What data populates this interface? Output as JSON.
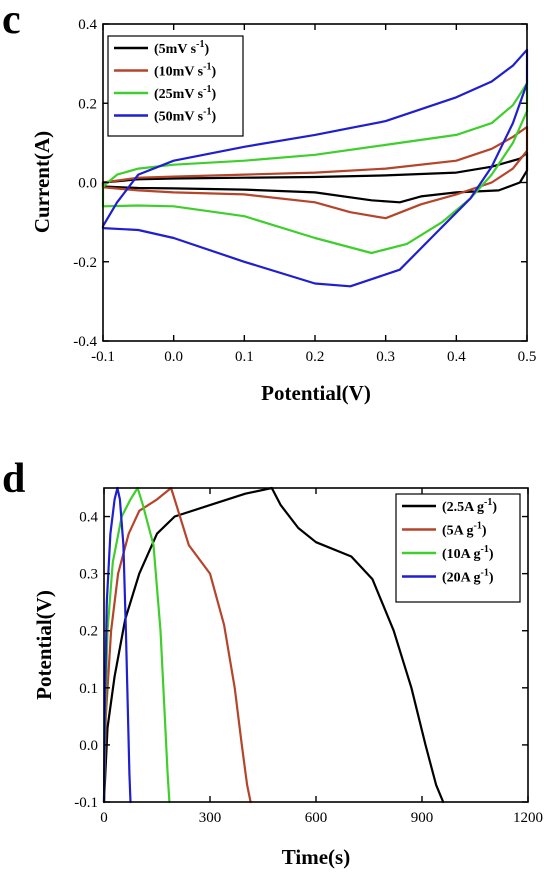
{
  "chart_data": [
    {
      "panel_label": "c",
      "type": "line",
      "xlabel": "Potential(V)",
      "ylabel": "Current(A)",
      "xlim": [
        -0.1,
        0.5
      ],
      "ylim": [
        -0.4,
        0.4
      ],
      "x_ticks": [
        -0.1,
        0.0,
        0.1,
        0.2,
        0.3,
        0.4,
        0.5
      ],
      "x_tick_labels": [
        "-0.1",
        "0.0",
        "0.1",
        "0.2",
        "0.3",
        "0.4",
        "0.5"
      ],
      "y_ticks": [
        -0.4,
        -0.2,
        0.0,
        0.2,
        0.4
      ],
      "y_tick_labels": [
        "-0.4",
        "-0.2",
        "0.0",
        "0.2",
        "0.4"
      ],
      "legend_position": "top-left",
      "grid": false,
      "series": [
        {
          "name": "5mV s",
          "legend_main": "(5mV s",
          "legend_sup": "-1",
          "legend_close": ")",
          "color": "#000000",
          "points": [
            [
              -0.1,
              0.0
            ],
            [
              -0.05,
              0.008
            ],
            [
              0.0,
              0.01
            ],
            [
              0.1,
              0.012
            ],
            [
              0.2,
              0.014
            ],
            [
              0.3,
              0.018
            ],
            [
              0.4,
              0.025
            ],
            [
              0.45,
              0.04
            ],
            [
              0.49,
              0.06
            ],
            [
              0.5,
              0.075
            ],
            [
              0.5,
              0.03
            ],
            [
              0.49,
              0.0
            ],
            [
              0.46,
              -0.02
            ],
            [
              0.4,
              -0.025
            ],
            [
              0.35,
              -0.035
            ],
            [
              0.32,
              -0.05
            ],
            [
              0.28,
              -0.045
            ],
            [
              0.2,
              -0.025
            ],
            [
              0.1,
              -0.018
            ],
            [
              0.0,
              -0.015
            ],
            [
              -0.05,
              -0.014
            ],
            [
              -0.1,
              -0.01
            ],
            [
              -0.1,
              0.0
            ]
          ]
        },
        {
          "name": "10mV s",
          "legend_main": "(10mV s",
          "legend_sup": "-1",
          "legend_close": ")",
          "color": "#b5452a",
          "points": [
            [
              -0.1,
              0.0
            ],
            [
              -0.05,
              0.012
            ],
            [
              0.0,
              0.015
            ],
            [
              0.1,
              0.02
            ],
            [
              0.2,
              0.025
            ],
            [
              0.3,
              0.035
            ],
            [
              0.4,
              0.055
            ],
            [
              0.45,
              0.085
            ],
            [
              0.48,
              0.115
            ],
            [
              0.5,
              0.14
            ],
            [
              0.5,
              0.08
            ],
            [
              0.48,
              0.035
            ],
            [
              0.45,
              0.0
            ],
            [
              0.4,
              -0.03
            ],
            [
              0.35,
              -0.055
            ],
            [
              0.3,
              -0.09
            ],
            [
              0.25,
              -0.075
            ],
            [
              0.2,
              -0.05
            ],
            [
              0.1,
              -0.03
            ],
            [
              0.0,
              -0.025
            ],
            [
              -0.05,
              -0.02
            ],
            [
              -0.1,
              -0.012
            ],
            [
              -0.1,
              0.0
            ]
          ]
        },
        {
          "name": "25mV s",
          "legend_main": "(25mV s",
          "legend_sup": "-1",
          "legend_close": ")",
          "color": "#3fcf2c",
          "points": [
            [
              -0.1,
              -0.01
            ],
            [
              -0.08,
              0.02
            ],
            [
              -0.05,
              0.035
            ],
            [
              0.0,
              0.045
            ],
            [
              0.1,
              0.055
            ],
            [
              0.2,
              0.07
            ],
            [
              0.3,
              0.095
            ],
            [
              0.4,
              0.12
            ],
            [
              0.45,
              0.15
            ],
            [
              0.48,
              0.195
            ],
            [
              0.5,
              0.25
            ],
            [
              0.5,
              0.18
            ],
            [
              0.48,
              0.1
            ],
            [
              0.45,
              0.02
            ],
            [
              0.42,
              -0.04
            ],
            [
              0.38,
              -0.1
            ],
            [
              0.33,
              -0.155
            ],
            [
              0.28,
              -0.178
            ],
            [
              0.2,
              -0.14
            ],
            [
              0.1,
              -0.085
            ],
            [
              0.0,
              -0.06
            ],
            [
              -0.05,
              -0.058
            ],
            [
              -0.1,
              -0.06
            ],
            [
              -0.1,
              -0.01
            ]
          ]
        },
        {
          "name": "50mV s",
          "legend_main": "(50mV s",
          "legend_sup": "-1",
          "legend_close": ")",
          "color": "#1f1fd0",
          "points": [
            [
              -0.1,
              -0.11
            ],
            [
              -0.08,
              -0.05
            ],
            [
              -0.05,
              0.02
            ],
            [
              0.0,
              0.055
            ],
            [
              0.1,
              0.09
            ],
            [
              0.2,
              0.12
            ],
            [
              0.3,
              0.155
            ],
            [
              0.4,
              0.215
            ],
            [
              0.45,
              0.255
            ],
            [
              0.48,
              0.295
            ],
            [
              0.5,
              0.335
            ],
            [
              0.5,
              0.25
            ],
            [
              0.48,
              0.15
            ],
            [
              0.45,
              0.04
            ],
            [
              0.42,
              -0.04
            ],
            [
              0.37,
              -0.13
            ],
            [
              0.32,
              -0.22
            ],
            [
              0.25,
              -0.262
            ],
            [
              0.2,
              -0.255
            ],
            [
              0.1,
              -0.2
            ],
            [
              0.0,
              -0.14
            ],
            [
              -0.05,
              -0.12
            ],
            [
              -0.1,
              -0.115
            ],
            [
              -0.1,
              -0.11
            ]
          ]
        }
      ]
    },
    {
      "panel_label": "d",
      "type": "line",
      "xlabel": "Time(s)",
      "ylabel": "Potential(V)",
      "xlim": [
        0,
        1200
      ],
      "ylim": [
        -0.1,
        0.45
      ],
      "x_ticks": [
        0,
        300,
        600,
        900,
        1200
      ],
      "x_tick_labels": [
        "0",
        "300",
        "600",
        "900",
        "1200"
      ],
      "y_ticks": [
        -0.1,
        0.0,
        0.1,
        0.2,
        0.3,
        0.4
      ],
      "y_tick_labels": [
        "-0.1",
        "0.0",
        "0.1",
        "0.2",
        "0.3",
        "0.4"
      ],
      "legend_position": "top-right",
      "grid": false,
      "series": [
        {
          "name": "2.5A g",
          "legend_main": "(2.5A g",
          "legend_sup": "-1",
          "legend_close": ")",
          "color": "#000000",
          "points": [
            [
              0,
              -0.1
            ],
            [
              10,
              0.03
            ],
            [
              30,
              0.12
            ],
            [
              60,
              0.22
            ],
            [
              100,
              0.3
            ],
            [
              150,
              0.37
            ],
            [
              200,
              0.4
            ],
            [
              300,
              0.42
            ],
            [
              400,
              0.44
            ],
            [
              475,
              0.45
            ],
            [
              500,
              0.42
            ],
            [
              550,
              0.38
            ],
            [
              600,
              0.355
            ],
            [
              700,
              0.33
            ],
            [
              760,
              0.29
            ],
            [
              820,
              0.2
            ],
            [
              870,
              0.1
            ],
            [
              910,
              0.0
            ],
            [
              940,
              -0.07
            ],
            [
              960,
              -0.1
            ]
          ]
        },
        {
          "name": "5A g",
          "legend_main": "(5A g",
          "legend_sup": "-1",
          "legend_close": ")",
          "color": "#b5452a",
          "points": [
            [
              0,
              -0.1
            ],
            [
              5,
              0.05
            ],
            [
              20,
              0.2
            ],
            [
              40,
              0.3
            ],
            [
              70,
              0.37
            ],
            [
              100,
              0.41
            ],
            [
              150,
              0.43
            ],
            [
              190,
              0.45
            ],
            [
              210,
              0.41
            ],
            [
              240,
              0.35
            ],
            [
              300,
              0.3
            ],
            [
              340,
              0.21
            ],
            [
              370,
              0.1
            ],
            [
              390,
              0.0
            ],
            [
              405,
              -0.07
            ],
            [
              415,
              -0.1
            ]
          ]
        },
        {
          "name": "10A g",
          "legend_main": "(10A g",
          "legend_sup": "-1",
          "legend_close": ")",
          "color": "#3fcf2c",
          "points": [
            [
              0,
              -0.1
            ],
            [
              3,
              0.05
            ],
            [
              10,
              0.2
            ],
            [
              25,
              0.32
            ],
            [
              50,
              0.4
            ],
            [
              75,
              0.43
            ],
            [
              95,
              0.45
            ],
            [
              110,
              0.42
            ],
            [
              140,
              0.35
            ],
            [
              160,
              0.2
            ],
            [
              172,
              0.05
            ],
            [
              180,
              -0.05
            ],
            [
              185,
              -0.1
            ]
          ]
        },
        {
          "name": "20A g",
          "legend_main": "(20A g",
          "legend_sup": "-1",
          "legend_close": ")",
          "color": "#1f1fd0",
          "points": [
            [
              0,
              -0.1
            ],
            [
              2,
              0.05
            ],
            [
              8,
              0.25
            ],
            [
              18,
              0.37
            ],
            [
              30,
              0.43
            ],
            [
              38,
              0.45
            ],
            [
              45,
              0.43
            ],
            [
              55,
              0.35
            ],
            [
              62,
              0.2
            ],
            [
              68,
              0.05
            ],
            [
              72,
              -0.05
            ],
            [
              75,
              -0.1
            ]
          ]
        }
      ]
    }
  ]
}
